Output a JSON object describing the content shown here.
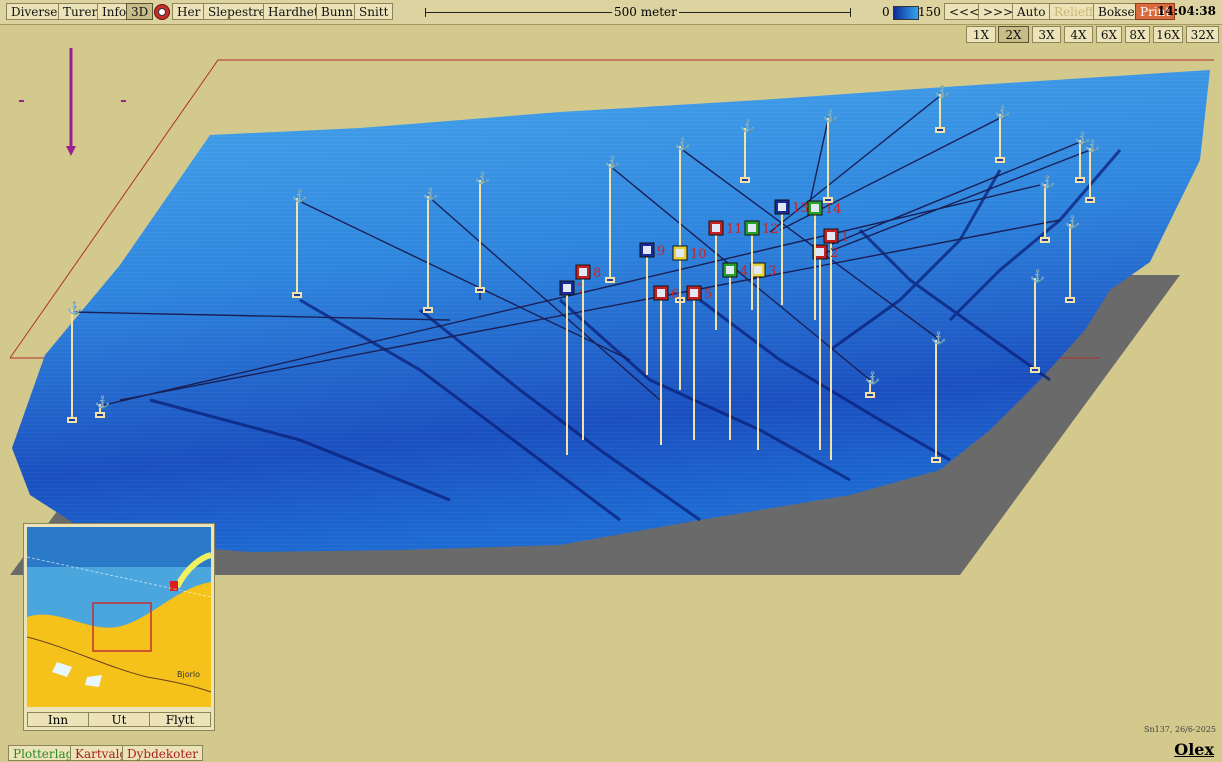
{
  "toolbar": {
    "diverse": "Diverse",
    "turer": "Turer",
    "info": "Info",
    "mode3d": "3D",
    "her": "Her",
    "slepestrek": "Slepestrek",
    "hardhet": "Hardhet",
    "bunn": "Bunn",
    "snitt": "Snitt",
    "scale_label": "500 meter",
    "depth_min": "0",
    "depth_max": "150",
    "back": "<<<",
    "forward": ">>>",
    "auto": "Auto",
    "relieff": "Relieff",
    "bokser": "Bokser",
    "print": "Print",
    "clock": "14:04:38"
  },
  "zoom": [
    "1X",
    "2X",
    "3X",
    "4X",
    "6X",
    "8X",
    "16X",
    "32X"
  ],
  "zoom_active": "2X",
  "markers": [
    "1",
    "2",
    "3",
    "4",
    "5",
    "6",
    "7",
    "8",
    "9",
    "10",
    "11",
    "12",
    "13",
    "14"
  ],
  "minimap": {
    "inn": "Inn",
    "ut": "Ut",
    "flytt": "Flytt",
    "town_label": "Bjorlo"
  },
  "bottom": {
    "plotterlag": "Plotterlag",
    "kartvalg": "Kartvalg",
    "dybdekoter": "Dybdekoter"
  },
  "stamp": "Sn137, 26/6-2025",
  "brand": "Olex",
  "colors": {
    "surface_deep": "#0d2a8c",
    "surface_shallow": "#3fa4ee",
    "background": "#d3c98d",
    "marker_red": "#c22222",
    "marker_green": "#2aa02a",
    "marker_yellow": "#e8d23a",
    "marker_blue": "#1a2a9c"
  }
}
